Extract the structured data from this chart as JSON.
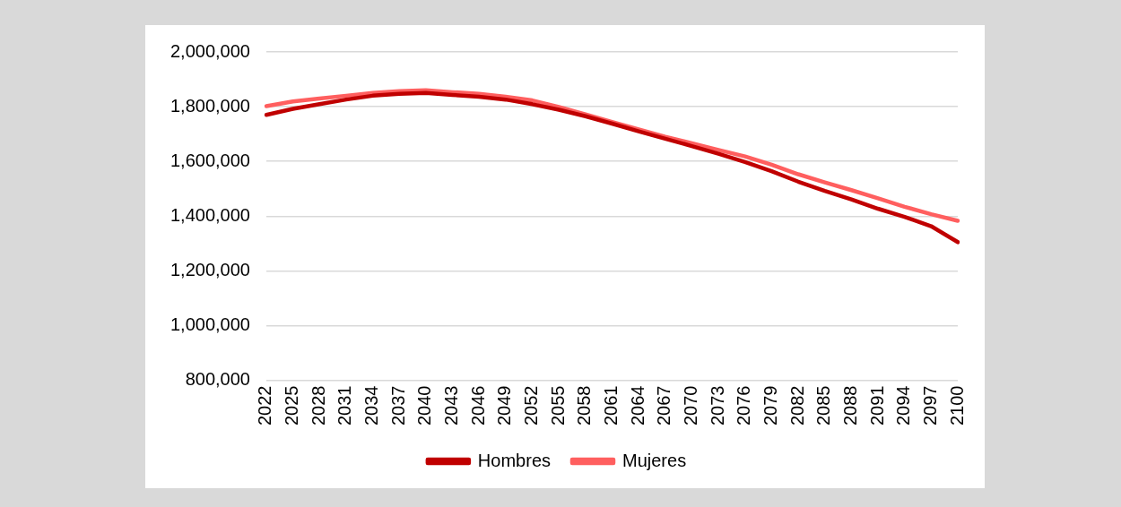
{
  "chart_data": {
    "type": "line",
    "categories": [
      "2022",
      "2025",
      "2028",
      "2031",
      "2034",
      "2037",
      "2040",
      "2043",
      "2046",
      "2049",
      "2052",
      "2055",
      "2058",
      "2061",
      "2064",
      "2067",
      "2070",
      "2073",
      "2076",
      "2079",
      "2082",
      "2085",
      "2088",
      "2091",
      "2094",
      "2097",
      "2100"
    ],
    "series": [
      {
        "name": "Hombres",
        "color": "#c00000",
        "values": [
          1770000,
          1792000,
          1809000,
          1826000,
          1840000,
          1847000,
          1850000,
          1843000,
          1836000,
          1826000,
          1809000,
          1789000,
          1765000,
          1738000,
          1710000,
          1683000,
          1656000,
          1628000,
          1598000,
          1564000,
          1526000,
          1492000,
          1461000,
          1427000,
          1397000,
          1363000,
          1305000
        ]
      },
      {
        "name": "Mujeres",
        "color": "#ff5f5f",
        "values": [
          1802000,
          1819000,
          1830000,
          1840000,
          1850000,
          1857000,
          1860000,
          1853000,
          1847000,
          1836000,
          1823000,
          1799000,
          1772000,
          1744000,
          1717000,
          1690000,
          1666000,
          1642000,
          1618000,
          1588000,
          1553000,
          1523000,
          1495000,
          1465000,
          1434000,
          1407000,
          1383000
        ]
      }
    ],
    "ylim": [
      800000,
      2000000
    ],
    "yticks": [
      {
        "value": 800000,
        "label": "800,000"
      },
      {
        "value": 1000000,
        "label": "1,000,000"
      },
      {
        "value": 1200000,
        "label": "1,200,000"
      },
      {
        "value": 1400000,
        "label": "1,400,000"
      },
      {
        "value": 1600000,
        "label": "1,600,000"
      },
      {
        "value": 1800000,
        "label": "1,800,000"
      },
      {
        "value": 2000000,
        "label": "2,000,000"
      }
    ],
    "grid": "y",
    "legend": "bottom",
    "marker": "none",
    "line_style": "solid"
  }
}
